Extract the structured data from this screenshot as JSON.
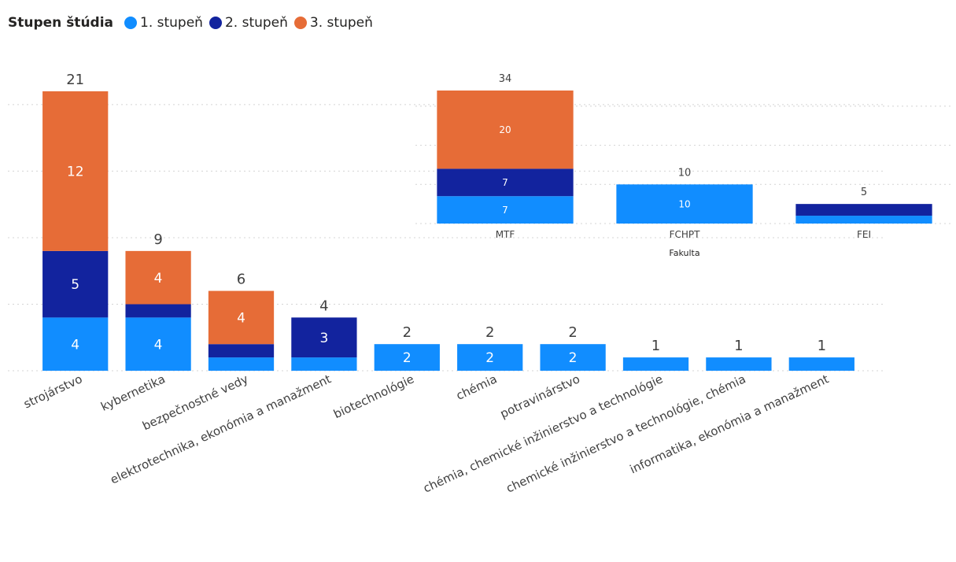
{
  "legend": {
    "title": "Stupen štúdia",
    "items": [
      {
        "label": "1. stupeň",
        "color": "#118DFF"
      },
      {
        "label": "2. stupeň",
        "color": "#12239E"
      },
      {
        "label": "3. stupeň",
        "color": "#E66C37"
      }
    ]
  },
  "chart_data": [
    {
      "type": "bar",
      "stacked": true,
      "legend_position": "top-left",
      "grid": true,
      "categories": [
        "strojárstvo",
        "kybernetika",
        "bezpečnostné vedy",
        "elektrotechnika, ekonómia a manažment",
        "biotechnológie",
        "chémia",
        "potravinárstvo",
        "chémia, chemické inžinierstvo a technológie",
        "chemické inžinierstvo a technológie, chémia",
        "informatika, ekonómia a manažment"
      ],
      "totals": [
        21,
        9,
        6,
        4,
        2,
        2,
        2,
        1,
        1,
        1
      ],
      "series": [
        {
          "name": "1. stupeň",
          "color": "#118DFF",
          "values": [
            4,
            4,
            1,
            1,
            2,
            2,
            2,
            1,
            1,
            1
          ],
          "labels": [
            "4",
            "4",
            "",
            "",
            "2",
            "2",
            "2",
            "",
            "",
            ""
          ]
        },
        {
          "name": "2. stupeň",
          "color": "#12239E",
          "values": [
            5,
            1,
            1,
            3,
            0,
            0,
            0,
            0,
            0,
            0
          ],
          "labels": [
            "5",
            "",
            "",
            "3",
            "",
            "",
            "",
            "",
            "",
            ""
          ]
        },
        {
          "name": "3. stupeň",
          "color": "#E66C37",
          "values": [
            12,
            4,
            4,
            0,
            0,
            0,
            0,
            0,
            0,
            0
          ],
          "labels": [
            "12",
            "4",
            "4",
            "",
            "",
            "",
            "",
            "",
            "",
            ""
          ]
        }
      ],
      "ylim": [
        0,
        21
      ]
    },
    {
      "type": "bar",
      "stacked": true,
      "grid": true,
      "xlabel": "Fakulta",
      "categories": [
        "MTF",
        "FCHPT",
        "FEI"
      ],
      "totals": [
        34,
        10,
        5
      ],
      "series": [
        {
          "name": "1. stupeň",
          "color": "#118DFF",
          "values": [
            7,
            10,
            2
          ],
          "labels": [
            "7",
            "10",
            ""
          ]
        },
        {
          "name": "2. stupeň",
          "color": "#12239E",
          "values": [
            7,
            0,
            3
          ],
          "labels": [
            "7",
            "",
            ""
          ]
        },
        {
          "name": "3. stupeň",
          "color": "#E66C37",
          "values": [
            20,
            0,
            0
          ],
          "labels": [
            "20",
            "",
            ""
          ]
        }
      ],
      "ylim": [
        0,
        34
      ]
    }
  ]
}
